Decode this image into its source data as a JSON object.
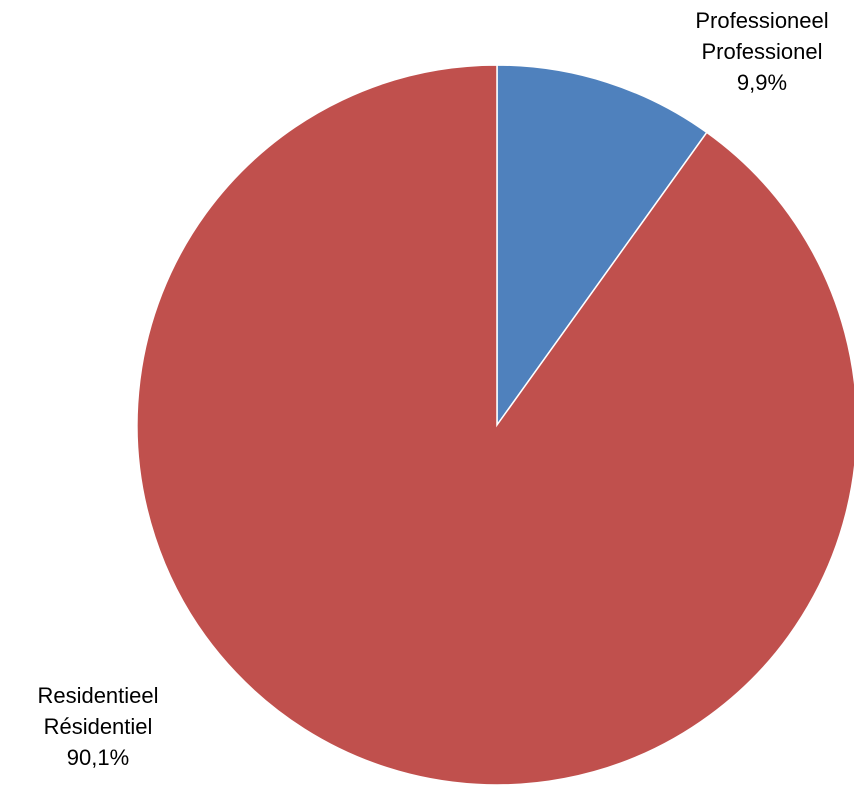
{
  "chart_data": {
    "type": "pie",
    "title": "",
    "slices": [
      {
        "label_line1": "Professioneel",
        "label_line2": "Professionel",
        "value": 9.9,
        "value_label": "9,9%",
        "color": "#4F81BD"
      },
      {
        "label_line1": "Residentieel",
        "label_line2": "Résidentiel",
        "value": 90.1,
        "value_label": "90,1%",
        "color": "#C0504D"
      }
    ]
  }
}
